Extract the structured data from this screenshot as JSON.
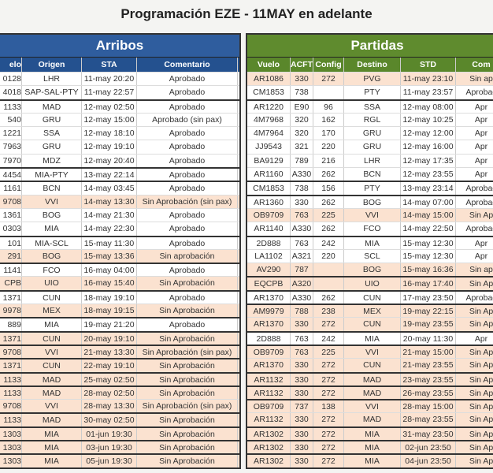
{
  "title": "Programación EZE - 11MAY en adelante",
  "arribos": {
    "title": "Arribos",
    "columns": [
      "elo",
      "Origen",
      "STA",
      "Comentario"
    ],
    "rows": [
      [
        "0128",
        "LHR",
        "11-may 20:20",
        "Aprobado"
      ],
      [
        "4018",
        "SAP-SAL-PTY",
        "11-may 22:57",
        "Aprobado"
      ],
      [
        "1133",
        "MAD",
        "12-may 02:50",
        "Aprobado"
      ],
      [
        "540",
        "GRU",
        "12-may 15:00",
        "Aprobado (sin pax)"
      ],
      [
        "1221",
        "SSA",
        "12-may 18:10",
        "Aprobado"
      ],
      [
        "7963",
        "GRU",
        "12-may 19:10",
        "Aprobado"
      ],
      [
        "7970",
        "MDZ",
        "12-may 20:40",
        "Aprobado"
      ],
      [
        "4454",
        "MIA-PTY",
        "13-may 22:14",
        "Aprobado"
      ],
      [
        "1161",
        "BCN",
        "14-may 03:45",
        "Aprobado"
      ],
      [
        "9708",
        "VVI",
        "14-may 13:30",
        "Sin Aprobación (sin pax)"
      ],
      [
        "1361",
        "BOG",
        "14-may 21:30",
        "Aprobado"
      ],
      [
        "0303",
        "MIA",
        "14-may 22:30",
        "Aprobado"
      ],
      [
        "101",
        "MIA-SCL",
        "15-may 11:30",
        "Aprobado"
      ],
      [
        "291",
        "BOG",
        "15-may 13:36",
        "Sin aprobación"
      ],
      [
        "1141",
        "FCO",
        "16-may 04:00",
        "Aprobado"
      ],
      [
        "CPB",
        "UIO",
        "16-may 15:40",
        "Sin Aprobación"
      ],
      [
        "1371",
        "CUN",
        "18-may 19:10",
        "Aprobado"
      ],
      [
        "9978",
        "MEX",
        "18-may 19:15",
        "Sin Aprobación"
      ],
      [
        "889",
        "MIA",
        "19-may 21:20",
        "Aprobado"
      ],
      [
        "1371",
        "CUN",
        "20-may 19:10",
        "Sin Aprobación"
      ],
      [
        "9708",
        "VVI",
        "21-may 13:30",
        "Sin Aprobación (sin pax)"
      ],
      [
        "1371",
        "CUN",
        "22-may 19:10",
        "Sin Aprobación"
      ],
      [
        "1133",
        "MAD",
        "25-may 02:50",
        "Sin Aprobación"
      ],
      [
        "1133",
        "MAD",
        "28-may 02:50",
        "Sin Aprobación"
      ],
      [
        "9708",
        "VVI",
        "28-may 13:30",
        "Sin Aprobación (sin pax)"
      ],
      [
        "1133",
        "MAD",
        "30-may 02:50",
        "Sin Aprobación"
      ],
      [
        "1303",
        "MIA",
        "01-jun 19:30",
        "Sin Aprobación"
      ],
      [
        "1303",
        "MIA",
        "03-jun 19:30",
        "Sin Aprobación"
      ],
      [
        "1303",
        "MIA",
        "05-jun 19:30",
        "Sin Aprobación"
      ]
    ]
  },
  "partidas": {
    "title": "Partidas",
    "columns": [
      "Vuelo",
      "ACFT",
      "Config",
      "Destino",
      "STD",
      "Com"
    ],
    "rows": [
      [
        "AR1086",
        "330",
        "272",
        "PVG",
        "11-may 23:10",
        "Sin ap"
      ],
      [
        "CM1853",
        "738",
        "",
        "PTY",
        "11-may 23:57",
        "Aprobac"
      ],
      [
        "AR1220",
        "E90",
        "96",
        "SSA",
        "12-may 08:00",
        "Apr"
      ],
      [
        "4M7968",
        "320",
        "162",
        "RGL",
        "12-may 10:25",
        "Apr"
      ],
      [
        "4M7964",
        "320",
        "170",
        "GRU",
        "12-may 12:00",
        "Apr"
      ],
      [
        "JJ9543",
        "321",
        "220",
        "GRU",
        "12-may 16:00",
        "Apr"
      ],
      [
        "BA9129",
        "789",
        "216",
        "LHR",
        "12-may 17:35",
        "Apr"
      ],
      [
        "AR1160",
        "A330",
        "262",
        "BCN",
        "12-may 23:55",
        "Apr"
      ],
      [
        "CM1853",
        "738",
        "156",
        "PTY",
        "13-may 23:14",
        "Aprobac"
      ],
      [
        "AR1360",
        "330",
        "262",
        "BOG",
        "14-may 07:00",
        "Aprobac"
      ],
      [
        "OB9709",
        "763",
        "225",
        "VVI",
        "14-may 15:00",
        "Sin Ap"
      ],
      [
        "AR1140",
        "A330",
        "262",
        "FCO",
        "14-may 22:50",
        "Aprobac"
      ],
      [
        "2D888",
        "763",
        "242",
        "MIA",
        "15-may 12:30",
        "Apr"
      ],
      [
        "LA1102",
        "A321",
        "220",
        "SCL",
        "15-may 12:30",
        "Apr"
      ],
      [
        "AV290",
        "787",
        "",
        "BOG",
        "15-may 16:36",
        "Sin ap"
      ],
      [
        "EQCPB",
        "A320",
        "",
        "UIO",
        "16-may 17:40",
        "Sin Ap"
      ],
      [
        "AR1370",
        "A330",
        "262",
        "CUN",
        "17-may 23:50",
        "Aprobac"
      ],
      [
        "AM9979",
        "788",
        "238",
        "MEX",
        "19-may 22:15",
        "Sin Ap"
      ],
      [
        "AR1370",
        "330",
        "272",
        "CUN",
        "19-may 23:55",
        "Sin Ap"
      ],
      [
        "2D888",
        "763",
        "242",
        "MIA",
        "20-may 11:30",
        "Apr"
      ],
      [
        "OB9709",
        "763",
        "225",
        "VVI",
        "21-may 15:00",
        "Sin Ap"
      ],
      [
        "AR1370",
        "330",
        "272",
        "CUN",
        "21-may 23:55",
        "Sin Ap"
      ],
      [
        "AR1132",
        "330",
        "272",
        "MAD",
        "23-may 23:55",
        "Sin Ap"
      ],
      [
        "AR1132",
        "330",
        "272",
        "MAD",
        "26-may 23:55",
        "Sin Ap"
      ],
      [
        "OB9709",
        "737",
        "138",
        "VVI",
        "28-may 15:00",
        "Sin Ap"
      ],
      [
        "AR1132",
        "330",
        "272",
        "MAD",
        "28-may 23:55",
        "Sin Ap"
      ],
      [
        "AR1302",
        "330",
        "272",
        "MIA",
        "31-may 23:50",
        "Sin Ap"
      ],
      [
        "AR1302",
        "330",
        "272",
        "MIA",
        "02-jun 23:50",
        "Sin Ap"
      ],
      [
        "AR1302",
        "330",
        "272",
        "MIA",
        "04-jun 23:50",
        "Sin Ap"
      ]
    ]
  }
}
